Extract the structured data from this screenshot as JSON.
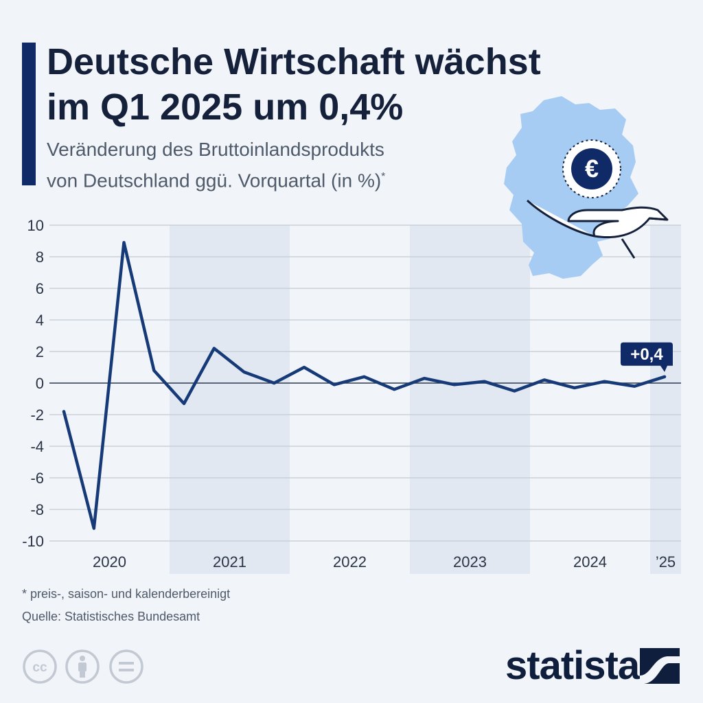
{
  "header": {
    "title_line1": "Deutsche Wirtschaft wächst",
    "title_line2": "im Q1 2025 um 0,4%",
    "subtitle_line1": "Veränderung des Bruttoinlandsprodukts",
    "subtitle_line2": "von Deutschland ggü. Vorquartal (in %)",
    "subtitle_marker": "*"
  },
  "chart_data": {
    "type": "line",
    "title": "Deutsche Wirtschaft wächst im Q1 2025 um 0,4%",
    "subtitle": "Veränderung des Bruttoinlandsprodukts von Deutschland ggü. Vorquartal (in %)*",
    "x": [
      "Q1 2020",
      "Q2 2020",
      "Q3 2020",
      "Q4 2020",
      "Q1 2021",
      "Q2 2021",
      "Q3 2021",
      "Q4 2021",
      "Q1 2022",
      "Q2 2022",
      "Q3 2022",
      "Q4 2022",
      "Q1 2023",
      "Q2 2023",
      "Q3 2023",
      "Q4 2023",
      "Q1 2024",
      "Q2 2024",
      "Q3 2024",
      "Q4 2024",
      "Q1 2025"
    ],
    "series": [
      {
        "values": [
          -1.8,
          -9.2,
          8.9,
          0.8,
          -1.3,
          2.2,
          0.7,
          0.0,
          1.0,
          -0.1,
          0.4,
          -0.4,
          0.3,
          -0.1,
          0.1,
          -0.5,
          0.2,
          -0.3,
          0.1,
          -0.2,
          0.4
        ]
      }
    ],
    "year_labels": [
      "2020",
      "2021",
      "2022",
      "2023",
      "2024",
      "’25"
    ],
    "year_quarter_counts": [
      4,
      4,
      4,
      4,
      4,
      1
    ],
    "shaded_years": [
      1,
      3,
      5
    ],
    "yticks": [
      10,
      8,
      6,
      4,
      2,
      0,
      -2,
      -4,
      -6,
      -8,
      -10
    ],
    "ylim": [
      -10,
      10
    ],
    "grid": true,
    "annotation": {
      "point_index": 20,
      "text": "+0,4"
    },
    "colors": {
      "line": "#163a78",
      "shade": "#e2e8f1",
      "grid": "#c3cad5",
      "zero": "#2c3850",
      "callout": "#0f2a66"
    }
  },
  "footer": {
    "footnote": "* preis-, saison- und kalenderbereinigt",
    "source": "Quelle: Statistisches Bundesamt",
    "license_icons": [
      "cc-icon",
      "by-icon",
      "nd-icon"
    ],
    "brand": "statista"
  },
  "illustration": {
    "description_icons": [
      "germany-map-icon",
      "euro-coin-icon",
      "open-hand-icon"
    ],
    "coin_symbol": "€",
    "colors": {
      "map": "#a6ccf3",
      "coin_ring": "#0f2a66"
    }
  }
}
